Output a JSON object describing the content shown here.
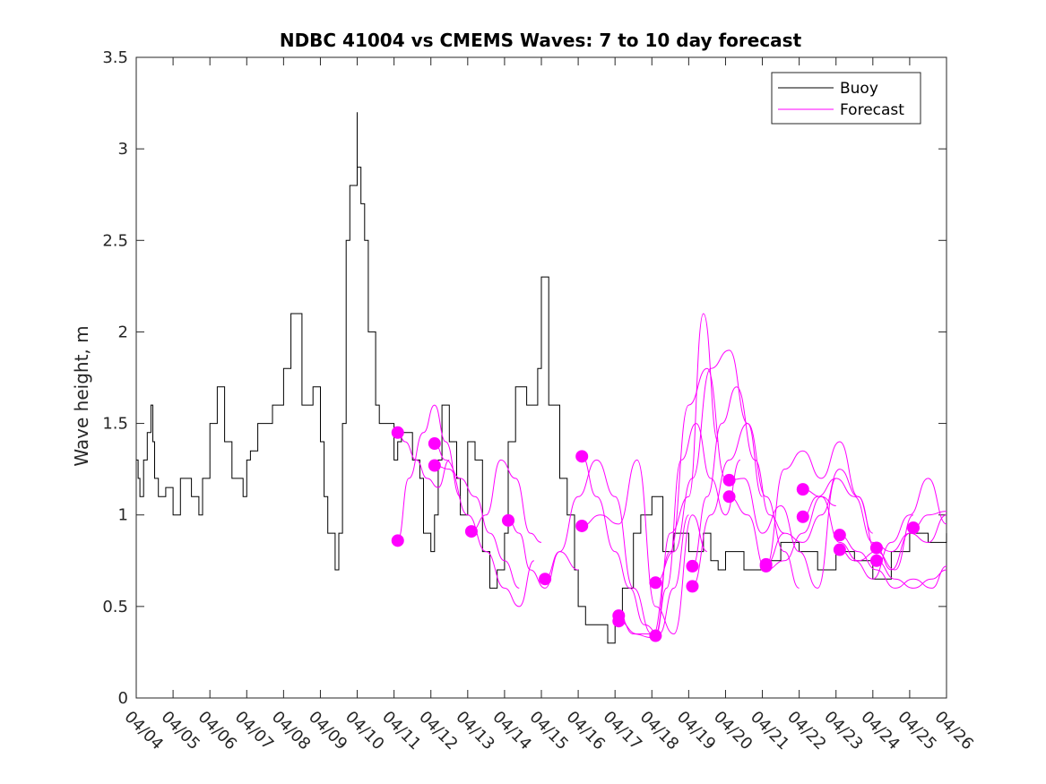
{
  "chart_data": {
    "type": "line",
    "title": "NDBC 41004 vs CMEMS Waves: 7 to 10 day forecast",
    "xlabel": "",
    "ylabel": "Wave height, m",
    "xlim": [
      0,
      22
    ],
    "ylim": [
      0,
      3.5
    ],
    "yticks": [
      0,
      0.5,
      1,
      1.5,
      2,
      2.5,
      3,
      3.5
    ],
    "ytick_labels": [
      "0",
      "0.5",
      "1",
      "1.5",
      "2",
      "2.5",
      "3",
      "3.5"
    ],
    "xtick_labels": [
      "04/04",
      "04/05",
      "04/06",
      "04/07",
      "04/08",
      "04/09",
      "04/10",
      "04/11",
      "04/12",
      "04/13",
      "04/14",
      "04/15",
      "04/16",
      "04/17",
      "04/18",
      "04/19",
      "04/20",
      "04/21",
      "04/22",
      "04/23",
      "04/24",
      "04/25",
      "04/26"
    ],
    "x_units": "days since 04/04",
    "legend": {
      "position": "top-right",
      "entries": [
        {
          "label": "Buoy",
          "color": "#000000"
        },
        {
          "label": "Forecast",
          "color": "#ff00ff"
        }
      ]
    },
    "colors": {
      "buoy": "#000000",
      "forecast": "#ff00ff",
      "axes": "#262626"
    },
    "buoy": {
      "name": "Buoy",
      "x": [
        0,
        0.05,
        0.1,
        0.2,
        0.3,
        0.4,
        0.45,
        0.5,
        0.6,
        0.7,
        0.8,
        1.0,
        1.2,
        1.5,
        1.7,
        1.8,
        2.0,
        2.2,
        2.4,
        2.6,
        2.9,
        3.0,
        3.1,
        3.3,
        3.5,
        3.7,
        4.0,
        4.2,
        4.5,
        4.8,
        5.0,
        5.1,
        5.2,
        5.4,
        5.5,
        5.6,
        5.7,
        5.8,
        6.0,
        6.0,
        6.1,
        6.2,
        6.3,
        6.5,
        6.6,
        7.0,
        7.1,
        7.2,
        7.5,
        7.7,
        7.8,
        8.0,
        8.1,
        8.2,
        8.3,
        8.5,
        8.7,
        8.8,
        9.0,
        9.2,
        9.4,
        9.6,
        9.8,
        10.0,
        10.1,
        10.3,
        10.6,
        10.9,
        11.0,
        11.2,
        11.5,
        11.7,
        11.9,
        12.0,
        12.2,
        12.5,
        12.8,
        13.0,
        13.2,
        13.5,
        13.7,
        14.0,
        14.3,
        14.6,
        15.0,
        15.4,
        15.6,
        15.8,
        16.0,
        16.5,
        17.0,
        17.5,
        18.0,
        18.5,
        19.0,
        19.5,
        20.0,
        20.5,
        21.0,
        21.5,
        22.0
      ],
      "y": [
        1.3,
        1.2,
        1.1,
        1.3,
        1.45,
        1.6,
        1.4,
        1.2,
        1.1,
        1.1,
        1.15,
        1.0,
        1.2,
        1.1,
        1.0,
        1.2,
        1.5,
        1.7,
        1.4,
        1.2,
        1.1,
        1.3,
        1.35,
        1.5,
        1.5,
        1.6,
        1.8,
        2.1,
        1.6,
        1.7,
        1.4,
        1.1,
        0.9,
        0.7,
        0.9,
        1.5,
        2.5,
        2.8,
        3.2,
        2.9,
        2.7,
        2.5,
        2.0,
        1.6,
        1.5,
        1.3,
        1.4,
        1.45,
        1.3,
        1.2,
        0.9,
        0.8,
        1.0,
        1.3,
        1.6,
        1.4,
        1.2,
        1.0,
        1.4,
        1.3,
        0.8,
        0.6,
        0.7,
        0.9,
        1.4,
        1.7,
        1.6,
        1.8,
        2.3,
        1.6,
        1.2,
        1.0,
        0.7,
        0.5,
        0.4,
        0.4,
        0.3,
        0.4,
        0.6,
        0.9,
        1.0,
        1.1,
        0.8,
        0.9,
        0.8,
        0.9,
        0.75,
        0.7,
        0.8,
        0.7,
        0.75,
        0.85,
        0.8,
        0.7,
        0.8,
        0.75,
        0.65,
        0.8,
        0.9,
        0.85,
        0.9
      ]
    },
    "forecast_series": [
      {
        "name": "Forecast",
        "x": [
          7.1,
          7.4,
          7.8,
          8.1,
          8.4,
          8.8
        ],
        "y": [
          0.86,
          1.2,
          1.45,
          1.6,
          1.4,
          1.1
        ]
      },
      {
        "name": "Forecast",
        "x": [
          7.1,
          7.3,
          7.6,
          7.9,
          8.2,
          8.5
        ],
        "y": [
          1.45,
          1.4,
          1.3,
          1.2,
          1.15,
          1.3
        ]
      },
      {
        "name": "Forecast",
        "x": [
          8.1,
          8.4,
          8.8,
          9.2,
          9.6,
          10.0,
          10.4
        ],
        "y": [
          1.39,
          1.3,
          1.2,
          1.1,
          0.9,
          0.75,
          0.6
        ]
      },
      {
        "name": "Forecast",
        "x": [
          8.1,
          8.5,
          9.0,
          9.5,
          10.0,
          10.4,
          10.8
        ],
        "y": [
          1.27,
          1.25,
          1.0,
          0.8,
          0.6,
          0.5,
          0.75
        ]
      },
      {
        "name": "Forecast",
        "x": [
          9.1,
          9.5,
          9.9,
          10.3,
          10.7,
          11.0
        ],
        "y": [
          0.91,
          1.0,
          1.3,
          1.2,
          0.9,
          0.85
        ]
      },
      {
        "name": "Forecast",
        "x": [
          10.1,
          10.4,
          10.7,
          11.1,
          11.5,
          12.0
        ],
        "y": [
          0.97,
          0.9,
          0.7,
          0.6,
          0.8,
          0.7
        ]
      },
      {
        "name": "Forecast",
        "x": [
          11.1,
          11.5,
          12.0,
          12.5,
          13.0,
          13.5,
          14.0
        ],
        "y": [
          0.65,
          0.8,
          1.1,
          1.3,
          1.1,
          0.6,
          0.35
        ]
      },
      {
        "name": "Forecast",
        "x": [
          12.1,
          12.5,
          13.0,
          13.4,
          13.8,
          14.2,
          14.6,
          15.0
        ],
        "y": [
          1.32,
          1.1,
          0.8,
          0.6,
          0.4,
          0.35,
          0.6,
          1.0
        ]
      },
      {
        "name": "Forecast",
        "x": [
          12.1,
          12.6,
          13.1,
          13.6,
          14.1,
          14.6,
          15.1,
          15.5
        ],
        "y": [
          0.94,
          1.0,
          0.95,
          1.3,
          0.5,
          0.35,
          1.0,
          0.8
        ]
      },
      {
        "name": "Forecast",
        "x": [
          13.1,
          13.5,
          14.0,
          14.5,
          15.0,
          15.5,
          16.0
        ],
        "y": [
          0.45,
          0.35,
          0.33,
          0.8,
          1.6,
          1.8,
          1.2
        ]
      },
      {
        "name": "Forecast",
        "x": [
          13.1,
          13.6,
          14.1,
          14.5,
          15.0,
          15.4,
          15.8
        ],
        "y": [
          0.42,
          0.35,
          0.35,
          0.9,
          1.1,
          2.1,
          1.4
        ]
      },
      {
        "name": "Forecast",
        "x": [
          14.1,
          14.4,
          14.8,
          15.2,
          15.6,
          16.0,
          16.4
        ],
        "y": [
          0.34,
          0.6,
          1.3,
          1.5,
          1.2,
          1.0,
          1.3
        ]
      },
      {
        "name": "Forecast",
        "x": [
          14.1,
          14.6,
          15.1,
          15.6,
          16.1,
          16.6,
          17.0
        ],
        "y": [
          0.63,
          0.8,
          1.2,
          1.8,
          1.9,
          1.5,
          1.1
        ]
      },
      {
        "name": "Forecast",
        "x": [
          15.1,
          15.5,
          15.9,
          16.3,
          16.8,
          17.2,
          17.6
        ],
        "y": [
          0.72,
          1.1,
          1.5,
          1.7,
          1.3,
          1.0,
          0.9
        ]
      },
      {
        "name": "Forecast",
        "x": [
          15.1,
          15.6,
          16.1,
          16.6,
          17.1,
          17.6,
          18.0
        ],
        "y": [
          0.61,
          1.0,
          1.3,
          1.5,
          1.1,
          0.8,
          0.6
        ]
      },
      {
        "name": "Forecast",
        "x": [
          16.1,
          16.5,
          17.0,
          17.5,
          18.0,
          18.5,
          19.0
        ],
        "y": [
          1.19,
          1.2,
          0.9,
          1.05,
          0.8,
          0.6,
          1.2
        ]
      },
      {
        "name": "Forecast",
        "x": [
          16.1,
          16.6,
          17.1,
          17.6,
          18.1,
          18.6,
          19.0
        ],
        "y": [
          1.1,
          1.0,
          0.7,
          0.75,
          0.9,
          1.1,
          1.05
        ]
      },
      {
        "name": "Forecast",
        "x": [
          17.1,
          17.6,
          18.1,
          18.6,
          19.1,
          19.6,
          20.0
        ],
        "y": [
          0.72,
          1.25,
          1.35,
          1.2,
          1.4,
          1.1,
          0.9
        ]
      },
      {
        "name": "Forecast",
        "x": [
          17.1,
          17.6,
          18.1,
          18.6,
          19.1,
          19.6,
          20.1
        ],
        "y": [
          0.73,
          0.9,
          0.85,
          1.0,
          1.25,
          1.1,
          0.8
        ]
      },
      {
        "name": "Forecast",
        "x": [
          18.1,
          18.6,
          19.1,
          19.6,
          20.1,
          20.6,
          21.1
        ],
        "y": [
          1.14,
          1.1,
          0.85,
          0.75,
          0.8,
          0.7,
          1.0
        ]
      },
      {
        "name": "Forecast",
        "x": [
          18.1,
          18.5,
          19.0,
          19.5,
          20.0,
          20.5,
          21.0
        ],
        "y": [
          0.99,
          1.1,
          1.2,
          1.1,
          0.85,
          0.8,
          0.9
        ]
      },
      {
        "name": "Forecast",
        "x": [
          19.1,
          19.6,
          20.1,
          20.6,
          21.1,
          21.6,
          22.0
        ],
        "y": [
          0.89,
          0.8,
          0.7,
          0.6,
          0.65,
          0.6,
          0.72
        ]
      },
      {
        "name": "Forecast",
        "x": [
          19.1,
          19.5,
          20.0,
          20.5,
          21.0,
          21.5,
          22.0
        ],
        "y": [
          0.81,
          0.75,
          0.65,
          0.85,
          1.0,
          1.2,
          0.95
        ]
      },
      {
        "name": "Forecast",
        "x": [
          20.1,
          20.5,
          21.0,
          21.5,
          22.0
        ],
        "y": [
          0.82,
          0.7,
          0.9,
          0.85,
          1.0
        ]
      },
      {
        "name": "Forecast",
        "x": [
          20.1,
          20.6,
          21.1,
          21.6,
          22.0
        ],
        "y": [
          0.75,
          0.65,
          0.6,
          0.65,
          0.7
        ]
      },
      {
        "name": "Forecast",
        "x": [
          21.1,
          21.5,
          22.0
        ],
        "y": [
          0.93,
          1.0,
          1.02
        ]
      }
    ]
  }
}
